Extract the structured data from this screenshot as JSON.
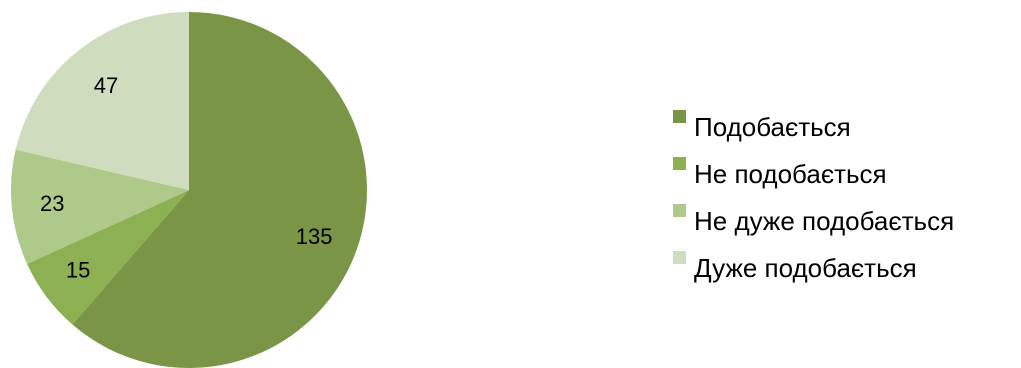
{
  "chart_data": {
    "type": "pie",
    "title": "",
    "legend_position": "right",
    "start_angle": "12 o'clock, clockwise",
    "slices": [
      {
        "label": "Подобається",
        "value": 135,
        "color": "#7a9545"
      },
      {
        "label": "Не подобається",
        "value": 15,
        "color": "#8db052"
      },
      {
        "label": "Не дуже подобається",
        "value": 23,
        "color": "#aec98a"
      },
      {
        "label": "Дуже подобається",
        "value": 47,
        "color": "#cfdcbe"
      }
    ]
  }
}
